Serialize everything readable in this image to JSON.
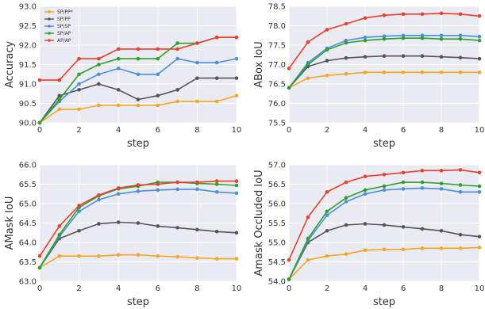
{
  "colors": {
    "panel_bg": "#eaeaf2",
    "grid": "#ffffff",
    "SP/PP": "#f5a623",
    "SP/PP*": "#f5a623",
    "SP/SP": "#4a90d9",
    "SP/AP": "#2ca02c",
    "AP/AP": "#e8402a",
    "gray": "#555555"
  },
  "chart_data": [
    {
      "type": "line",
      "xlabel": "step",
      "ylabel": "Accuracy",
      "xlim": [
        0,
        10
      ],
      "ylim": [
        90.0,
        93.0
      ],
      "xticks": [
        0,
        2,
        4,
        6,
        8,
        10
      ],
      "yticks": [
        "90.0",
        "90.5",
        "91.0",
        "91.5",
        "92.0",
        "92.5",
        "93.0"
      ],
      "grid": true,
      "legend_position": "upper-left",
      "x": [
        0,
        1,
        2,
        3,
        4,
        5,
        6,
        7,
        8,
        9,
        10
      ],
      "series": [
        {
          "name": "SP/PP*",
          "color": "#f5a623",
          "values": [
            90.0,
            90.35,
            90.35,
            90.45,
            90.45,
            90.45,
            90.45,
            90.55,
            90.55,
            90.55,
            90.7
          ]
        },
        {
          "name": "SP/PP",
          "color": "#555555",
          "values": [
            90.0,
            90.7,
            90.85,
            91.0,
            90.85,
            90.6,
            90.7,
            90.85,
            91.15,
            91.15,
            91.15
          ]
        },
        {
          "name": "SP/SP",
          "color": "#4a90d9",
          "values": [
            90.0,
            90.55,
            91.0,
            91.25,
            91.4,
            91.25,
            91.25,
            91.65,
            91.55,
            91.55,
            91.65
          ]
        },
        {
          "name": "SP/AP",
          "color": "#2ca02c",
          "values": [
            90.0,
            90.6,
            91.25,
            91.5,
            91.65,
            91.65,
            91.65,
            92.05,
            92.05,
            92.2,
            92.2
          ]
        },
        {
          "name": "AP/AP",
          "color": "#e8402a",
          "values": [
            91.1,
            91.1,
            91.65,
            91.65,
            91.9,
            91.9,
            91.9,
            91.9,
            92.05,
            92.2,
            92.2
          ]
        }
      ]
    },
    {
      "type": "line",
      "xlabel": "step",
      "ylabel": "ABox IoU",
      "xlim": [
        0,
        10
      ],
      "ylim": [
        75.5,
        78.5
      ],
      "xticks": [
        0,
        2,
        4,
        6,
        8,
        10
      ],
      "yticks": [
        "75.5",
        "76.0",
        "76.5",
        "77.0",
        "77.5",
        "78.0",
        "78.5"
      ],
      "grid": true,
      "x": [
        0,
        1,
        2,
        3,
        4,
        5,
        6,
        7,
        8,
        9,
        10
      ],
      "series": [
        {
          "name": "SP/PP*",
          "color": "#f5a623",
          "values": [
            76.4,
            76.65,
            76.72,
            76.76,
            76.8,
            76.8,
            76.8,
            76.8,
            76.8,
            76.8,
            76.8
          ]
        },
        {
          "name": "SP/PP",
          "color": "#555555",
          "values": [
            76.4,
            76.95,
            77.1,
            77.17,
            77.2,
            77.22,
            77.22,
            77.22,
            77.2,
            77.18,
            77.15
          ]
        },
        {
          "name": "SP/SP",
          "color": "#4a90d9",
          "values": [
            76.4,
            77.05,
            77.42,
            77.62,
            77.7,
            77.73,
            77.75,
            77.75,
            77.75,
            77.75,
            77.72
          ]
        },
        {
          "name": "SP/AP",
          "color": "#2ca02c",
          "values": [
            76.4,
            77.0,
            77.38,
            77.56,
            77.62,
            77.66,
            77.68,
            77.68,
            77.66,
            77.66,
            77.62
          ]
        },
        {
          "name": "AP/AP",
          "color": "#e8402a",
          "values": [
            76.9,
            77.58,
            77.9,
            78.05,
            78.2,
            78.27,
            78.3,
            78.3,
            78.32,
            78.3,
            78.25
          ]
        }
      ]
    },
    {
      "type": "line",
      "xlabel": "step",
      "ylabel": "AMask IoU",
      "xlim": [
        0,
        10
      ],
      "ylim": [
        63.0,
        66.0
      ],
      "xticks": [
        0,
        2,
        4,
        6,
        8,
        10
      ],
      "yticks": [
        "63.0",
        "63.5",
        "64.0",
        "64.5",
        "65.0",
        "65.5",
        "66.0"
      ],
      "grid": true,
      "x": [
        0,
        1,
        2,
        3,
        4,
        5,
        6,
        7,
        8,
        9,
        10
      ],
      "series": [
        {
          "name": "SP/PP*",
          "color": "#f5a623",
          "values": [
            63.35,
            63.65,
            63.65,
            63.65,
            63.68,
            63.68,
            63.65,
            63.63,
            63.6,
            63.58,
            63.58
          ]
        },
        {
          "name": "SP/PP",
          "color": "#555555",
          "values": [
            63.35,
            64.1,
            64.3,
            64.48,
            64.52,
            64.5,
            64.42,
            64.38,
            64.33,
            64.28,
            64.25
          ]
        },
        {
          "name": "SP/SP",
          "color": "#4a90d9",
          "values": [
            63.35,
            64.15,
            64.8,
            65.1,
            65.25,
            65.32,
            65.35,
            65.37,
            65.37,
            65.3,
            65.27
          ]
        },
        {
          "name": "SP/AP",
          "color": "#2ca02c",
          "values": [
            63.35,
            64.2,
            64.9,
            65.2,
            65.38,
            65.45,
            65.55,
            65.55,
            65.52,
            65.5,
            65.47
          ]
        },
        {
          "name": "AP/AP",
          "color": "#e8402a",
          "values": [
            63.65,
            64.42,
            64.95,
            65.22,
            65.4,
            65.48,
            65.5,
            65.55,
            65.55,
            65.58,
            65.58
          ]
        }
      ]
    },
    {
      "type": "line",
      "xlabel": "step",
      "ylabel": "Amask Occluded IoU",
      "xlim": [
        0,
        10
      ],
      "ylim": [
        54.0,
        57.0
      ],
      "xticks": [
        0,
        2,
        4,
        6,
        8,
        10
      ],
      "yticks": [
        "54.0",
        "54.5",
        "55.0",
        "55.5",
        "56.0",
        "56.5",
        "57.0"
      ],
      "grid": true,
      "x": [
        0,
        1,
        2,
        3,
        4,
        5,
        6,
        7,
        8,
        9,
        10
      ],
      "series": [
        {
          "name": "SP/PP*",
          "color": "#f5a623",
          "values": [
            54.05,
            54.55,
            54.65,
            54.7,
            54.8,
            54.82,
            54.82,
            54.85,
            54.85,
            54.85,
            54.87
          ]
        },
        {
          "name": "SP/PP",
          "color": "#555555",
          "values": [
            54.05,
            55.0,
            55.3,
            55.45,
            55.48,
            55.45,
            55.4,
            55.35,
            55.3,
            55.2,
            55.15
          ]
        },
        {
          "name": "SP/SP",
          "color": "#4a90d9",
          "values": [
            54.05,
            55.05,
            55.7,
            56.05,
            56.25,
            56.35,
            56.38,
            56.4,
            56.38,
            56.3,
            56.3
          ]
        },
        {
          "name": "SP/AP",
          "color": "#2ca02c",
          "values": [
            54.05,
            55.1,
            55.8,
            56.15,
            56.35,
            56.45,
            56.55,
            56.55,
            56.52,
            56.48,
            56.45
          ]
        },
        {
          "name": "AP/AP",
          "color": "#e8402a",
          "values": [
            54.55,
            55.65,
            56.3,
            56.55,
            56.7,
            56.75,
            56.8,
            56.85,
            56.85,
            56.87,
            56.8
          ]
        }
      ]
    }
  ]
}
